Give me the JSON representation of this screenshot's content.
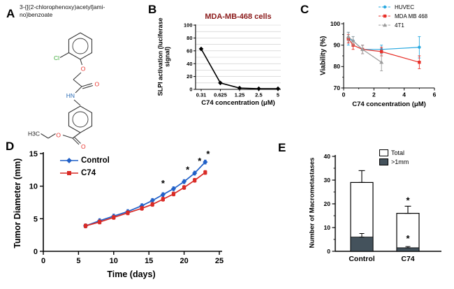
{
  "figure": {
    "panel_labels": {
      "A": "A",
      "B": "B",
      "C": "C",
      "D": "D",
      "E": "E"
    },
    "panelA": {
      "compound_name_lines": [
        "3-{[(2-chlorophenoxy)acetyl]ami-",
        "no}benzoate"
      ],
      "atoms": {
        "cl": "Cl",
        "ether_o": "O",
        "amide_o": "O",
        "amide_nh": "HN",
        "ester_carbonyl_o": "O",
        "ester_o": "O",
        "ethyl": "H3C"
      },
      "atom_colors": {
        "cl": "#3aaa35",
        "o": "#e8312a",
        "n": "#2b6cb5"
      }
    }
  },
  "chart_data": [
    {
      "id": "B",
      "type": "line",
      "title": "MDA-MB-468 cells",
      "title_color": "#8b1a1a",
      "xlabel": "C74 concentration (μM)",
      "ylabel": "SLPI activation (luciferase signal)",
      "x_categories": [
        "0.31",
        "0.625",
        "1.25",
        "2.5",
        "5"
      ],
      "values": [
        63,
        10,
        2,
        1,
        1
      ],
      "ylim": [
        0,
        100
      ],
      "grid_step": 10,
      "ytick_label_step": 20,
      "grid": true,
      "line_color": "#000000",
      "marker": "diamond"
    },
    {
      "id": "C",
      "type": "line",
      "xlabel": "C74 concentration (μM)",
      "ylabel": "Viability (%)",
      "xlim": [
        0,
        6
      ],
      "ylim": [
        70,
        100
      ],
      "xticks": [
        0,
        2,
        4,
        6
      ],
      "yticks": [
        70,
        80,
        90,
        100
      ],
      "xminor": [
        1,
        3,
        5
      ],
      "yminor": [
        75,
        85,
        95
      ],
      "grid": false,
      "legend_position": "top-right",
      "series": [
        {
          "name": "HUVEC",
          "color": "#2aa9e0",
          "marker": "circle",
          "x": [
            0.31,
            0.625,
            1.25,
            2.5,
            5
          ],
          "y": [
            93,
            92,
            88,
            88,
            89
          ],
          "err": [
            3,
            2,
            2,
            2,
            5
          ]
        },
        {
          "name": "MDA MB 468",
          "color": "#e8312a",
          "marker": "square",
          "x": [
            0.31,
            0.625,
            1.25,
            2.5,
            5
          ],
          "y": [
            93,
            90,
            88,
            87,
            82
          ],
          "err": [
            2,
            2,
            2,
            2,
            3
          ]
        },
        {
          "name": "4T1",
          "color": "#9b9b9b",
          "marker": "triangle",
          "x": [
            0.31,
            0.625,
            1.25,
            2.5
          ],
          "y": [
            94,
            92,
            88,
            82
          ],
          "err": [
            2,
            2,
            2,
            4
          ]
        }
      ]
    },
    {
      "id": "D",
      "type": "line",
      "xlabel": "Time (days)",
      "ylabel": "Tumor Diameter (mm)",
      "xlim": [
        0,
        25
      ],
      "ylim": [
        0,
        15
      ],
      "xticks": [
        0,
        5,
        10,
        15,
        20,
        25
      ],
      "yticks": [
        0,
        5,
        10,
        15
      ],
      "grid": false,
      "legend_position": "top-left",
      "series": [
        {
          "name": "Control",
          "color": "#2060c8",
          "marker": "diamond",
          "x": [
            6,
            8,
            10,
            12,
            14,
            15.5,
            17,
            18.5,
            20,
            21.5,
            23
          ],
          "y": [
            3.9,
            4.7,
            5.4,
            6.1,
            7.0,
            7.8,
            8.7,
            9.6,
            10.7,
            12.0,
            13.7
          ],
          "err": 0.3
        },
        {
          "name": "C74",
          "color": "#d92b26",
          "marker": "square",
          "x": [
            6,
            8,
            10,
            12,
            14,
            15.5,
            17,
            18.5,
            20,
            21.5,
            23
          ],
          "y": [
            3.9,
            4.5,
            5.2,
            5.9,
            6.6,
            7.2,
            8.0,
            8.8,
            9.8,
            10.9,
            12.1
          ],
          "err": 0.3
        }
      ],
      "significance_marks": [
        {
          "x": 17,
          "y": 10.4
        },
        {
          "x": 20.5,
          "y": 12.5
        },
        {
          "x": 22.2,
          "y": 13.8
        },
        {
          "x": 23.4,
          "y": 14.9
        }
      ]
    },
    {
      "id": "E",
      "type": "bar",
      "ylabel": "Number of Macrometastases",
      "categories": [
        "Control",
        "C74"
      ],
      "ylim": [
        0,
        40
      ],
      "yticks": [
        0,
        10,
        20,
        30,
        40
      ],
      "yminor": [
        5,
        15,
        25,
        35
      ],
      "legend_position": "top-right",
      "series": [
        {
          "name": "Total",
          "fill": "#ffffff",
          "values": [
            29,
            16
          ],
          "errors": [
            5,
            3
          ]
        },
        {
          "name": ">1mm",
          "fill": "#44525c",
          "values": [
            6,
            1.5
          ],
          "errors": [
            1.5,
            0.5
          ]
        }
      ],
      "significance_marks": [
        {
          "category": "C74",
          "y": 21
        },
        {
          "category": "C74",
          "y": 5
        }
      ]
    }
  ]
}
